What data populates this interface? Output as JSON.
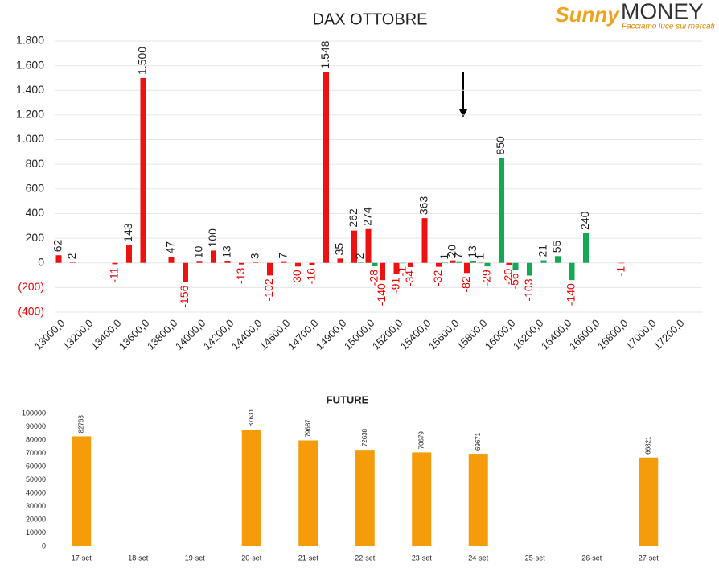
{
  "logo": {
    "brand": "Sunny",
    "name": "MONEY",
    "tagline": "Facciamo luce sui mercati"
  },
  "chart_data": [
    {
      "type": "bar",
      "title": "DAX OTTOBRE",
      "categories": [
        "13000,0",
        null,
        "13200,0",
        null,
        "13400,0",
        null,
        "13600,0",
        null,
        "13800,0",
        null,
        "14000,0",
        null,
        "14200,0",
        null,
        "14400,0",
        null,
        "14600,0",
        null,
        "14700,0",
        null,
        "14900,0",
        null,
        "15000,0",
        null,
        "15200,0",
        null,
        "15400,0",
        null,
        "15600,0",
        null,
        "15800,0",
        null,
        "16000,0",
        null,
        "16200,0",
        null,
        "16400,0",
        null,
        "16600,0",
        null,
        "16800,0",
        null,
        "17000,0",
        null,
        "17200,0",
        null
      ],
      "series": [
        {
          "color": "#ee1111",
          "values": [
            62,
            2,
            null,
            null,
            -11,
            143,
            1500,
            null,
            47,
            -156,
            10,
            100,
            13,
            -13,
            3,
            -102,
            7,
            -30,
            -16,
            1548,
            35,
            262,
            274,
            -140,
            -91,
            -34,
            363,
            -32,
            20,
            -82,
            1,
            null,
            -20,
            null,
            null,
            null,
            null,
            null,
            null,
            null,
            -1,
            null,
            null,
            null,
            null,
            null
          ],
          "value_labels": [
            "62",
            "2",
            null,
            null,
            "-11",
            "143",
            "1.500",
            null,
            "47",
            "-156",
            "10",
            "100",
            "13",
            "-13",
            "3",
            "-102",
            "7",
            "-30",
            "-16",
            "1.548",
            "35",
            "262",
            "274",
            "-140",
            "-91",
            "-34",
            "363",
            "-32",
            "20",
            "-82",
            "1",
            null,
            "-20",
            null,
            null,
            null,
            null,
            null,
            null,
            null,
            "-1",
            null,
            null,
            null,
            null,
            null
          ]
        },
        {
          "color": "#12a854",
          "values": [
            null,
            null,
            null,
            null,
            null,
            null,
            null,
            null,
            null,
            null,
            null,
            null,
            null,
            null,
            null,
            null,
            null,
            null,
            null,
            null,
            null,
            2,
            -28,
            null,
            -1,
            null,
            null,
            1,
            7,
            13,
            -29,
            850,
            -56,
            -103,
            21,
            55,
            -140,
            240,
            null,
            null,
            null,
            null,
            null,
            null,
            null,
            null
          ],
          "value_labels": [
            null,
            null,
            null,
            null,
            null,
            null,
            null,
            null,
            null,
            null,
            null,
            null,
            null,
            null,
            null,
            null,
            null,
            null,
            null,
            null,
            null,
            "2",
            "-28",
            null,
            "-1",
            null,
            null,
            "1",
            "7",
            "13",
            "-29",
            "850",
            "-56",
            "-103",
            "21",
            "55",
            "-140",
            "240",
            null,
            null,
            null,
            null,
            null,
            null,
            null,
            null
          ]
        }
      ],
      "ylim": [
        -400,
        1800
      ],
      "yticks": [
        {
          "value": -400,
          "label": "(400)"
        },
        {
          "value": -200,
          "label": "(200)"
        },
        0,
        200,
        400,
        600,
        800,
        {
          "value": 1000,
          "label": "1.000"
        },
        {
          "value": 1200,
          "label": "1.200"
        },
        {
          "value": 1400,
          "label": "1.400"
        },
        {
          "value": 1600,
          "label": "1.600"
        },
        {
          "value": 1800,
          "label": "1.800"
        }
      ],
      "grid": true
    },
    {
      "type": "bar",
      "title": "FUTURE",
      "categories": [
        "17-set",
        "18-set",
        "19-set",
        "20-set",
        "21-set",
        "22-set",
        "23-set",
        "24-set",
        "25-set",
        "26-set",
        "27-set"
      ],
      "series": [
        {
          "color": "#f59c0b",
          "values": [
            82763,
            null,
            null,
            87631,
            79687,
            72638,
            70679,
            69671,
            null,
            null,
            66821
          ]
        }
      ],
      "ylim": [
        0,
        100000
      ],
      "yticks": [
        0,
        10000,
        20000,
        30000,
        40000,
        50000,
        60000,
        70000,
        80000,
        90000,
        100000
      ],
      "grid": false
    }
  ]
}
